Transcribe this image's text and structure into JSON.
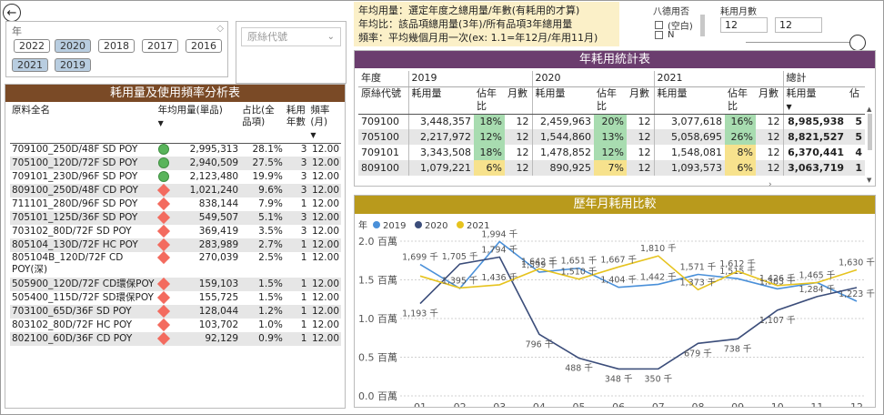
{
  "nav": {
    "back_icon": "←"
  },
  "year_slicer": {
    "label": "年",
    "years": [
      {
        "label": "2022",
        "selected": false
      },
      {
        "label": "2020",
        "selected": true
      },
      {
        "label": "2018",
        "selected": false
      },
      {
        "label": "2017",
        "selected": false
      },
      {
        "label": "2016",
        "selected": false
      },
      {
        "label": "2021",
        "selected": true
      },
      {
        "label": "2019",
        "selected": true
      }
    ]
  },
  "material_slicer": {
    "placeholder": "原絲代號"
  },
  "notes": {
    "line1": "年均用量：選定年度之總用量/年數(有耗用的才算)",
    "line2": "年均比：該品項總用量(3年)/所有品項3年總用量",
    "line3": "頻率：平均幾個月用一次(ex: 1.1=年12月/年用11月)"
  },
  "category_slicer": {
    "title": "八德用否",
    "options": [
      "(空白)",
      "N"
    ]
  },
  "months_slicer": {
    "title": "耗用月數",
    "min": "12",
    "max": "12"
  },
  "left_table": {
    "title": "耗用量及使用頻率分析表",
    "headers": {
      "name": "原料全名",
      "avg": "年均用量(單品)",
      "pct": "占比(全品項)",
      "years": "耗用年數",
      "freq": "頻率(月)"
    },
    "rows": [
      {
        "name": "709100_250D/48F SD POY",
        "status": "green",
        "avg": "2,995,313",
        "pct": "28.1%",
        "years": "3",
        "freq": "12.00"
      },
      {
        "name": "705100_120D/72F SD POY",
        "status": "green",
        "avg": "2,940,509",
        "pct": "27.5%",
        "years": "3",
        "freq": "12.00"
      },
      {
        "name": "709101_230D/96F SD POY",
        "status": "green",
        "avg": "2,123,480",
        "pct": "19.9%",
        "years": "3",
        "freq": "12.00"
      },
      {
        "name": "809100_250D/48F CD POY",
        "status": "red",
        "avg": "1,021,240",
        "pct": "9.6%",
        "years": "3",
        "freq": "12.00"
      },
      {
        "name": "711101_280D/96F SD POY",
        "status": "red",
        "avg": "838,144",
        "pct": "7.9%",
        "years": "1",
        "freq": "12.00"
      },
      {
        "name": "705101_125D/36F SD POY",
        "status": "red",
        "avg": "549,507",
        "pct": "5.1%",
        "years": "3",
        "freq": "12.00"
      },
      {
        "name": "703102_80D/72F SD POY",
        "status": "red",
        "avg": "369,419",
        "pct": "3.5%",
        "years": "3",
        "freq": "12.00"
      },
      {
        "name": "805104_130D/72F HC POY",
        "status": "red",
        "avg": "283,989",
        "pct": "2.7%",
        "years": "1",
        "freq": "12.00"
      },
      {
        "name": "805104B_120D/72F CD POY(深)",
        "status": "red",
        "avg": "270,039",
        "pct": "2.5%",
        "years": "1",
        "freq": "12.00"
      },
      {
        "name": "505900_120D/72F CD環保POY",
        "status": "red",
        "avg": "159,103",
        "pct": "1.5%",
        "years": "1",
        "freq": "12.00"
      },
      {
        "name": "505400_115D/72F SD環保POY",
        "status": "red",
        "avg": "155,725",
        "pct": "1.5%",
        "years": "1",
        "freq": "12.00"
      },
      {
        "name": "703100_65D/36F SD POY",
        "status": "red",
        "avg": "128,044",
        "pct": "1.2%",
        "years": "1",
        "freq": "12.00"
      },
      {
        "name": "803102_80D/72F HC POY",
        "status": "red",
        "avg": "103,702",
        "pct": "1.0%",
        "years": "1",
        "freq": "12.00"
      },
      {
        "name": "802100_60D/36F CD POY",
        "status": "red",
        "avg": "92,129",
        "pct": "0.9%",
        "years": "1",
        "freq": "12.00"
      }
    ]
  },
  "matrix": {
    "title": "年耗用統計表",
    "col_year": "年度",
    "col_code": "原絲代號",
    "years": [
      "2019",
      "2020",
      "2021"
    ],
    "sub_headers": {
      "usage": "耗用量",
      "share": "佔年比",
      "months": "月數"
    },
    "total_label": "總計",
    "total_usage": "耗用量",
    "total_share": "佔",
    "rows": [
      {
        "code": "709100",
        "cells": [
          {
            "usage": "3,448,357",
            "share": "18%",
            "c": "g",
            "months": "12"
          },
          {
            "usage": "2,459,963",
            "share": "20%",
            "c": "g",
            "months": "12"
          },
          {
            "usage": "3,077,618",
            "share": "16%",
            "c": "g",
            "months": "12"
          }
        ],
        "total": "8,985,938",
        "tshare": "5"
      },
      {
        "code": "705100",
        "cells": [
          {
            "usage": "2,217,972",
            "share": "12%",
            "c": "g",
            "months": "12"
          },
          {
            "usage": "1,544,860",
            "share": "13%",
            "c": "g",
            "months": "12"
          },
          {
            "usage": "5,058,695",
            "share": "26%",
            "c": "g",
            "months": "12"
          }
        ],
        "total": "8,821,527",
        "tshare": "5"
      },
      {
        "code": "709101",
        "cells": [
          {
            "usage": "3,343,508",
            "share": "18%",
            "c": "g",
            "months": "12"
          },
          {
            "usage": "1,478,852",
            "share": "12%",
            "c": "g",
            "months": "12"
          },
          {
            "usage": "1,548,081",
            "share": "8%",
            "c": "y",
            "months": "12"
          }
        ],
        "total": "6,370,441",
        "tshare": "4"
      },
      {
        "code": "809100",
        "cells": [
          {
            "usage": "1,079,221",
            "share": "6%",
            "c": "y",
            "months": "12"
          },
          {
            "usage": "890,925",
            "share": "7%",
            "c": "y",
            "months": "12"
          },
          {
            "usage": "1,093,573",
            "share": "6%",
            "c": "y",
            "months": "12"
          }
        ],
        "total": "3,063,719",
        "tshare": "1"
      }
    ]
  },
  "chart": {
    "title": "歷年月耗用比較",
    "legend_title": "年",
    "chart_data": {
      "type": "line",
      "title": "歷年月耗用比較",
      "x": [
        "01",
        "02",
        "03",
        "04",
        "05",
        "06",
        "07",
        "08",
        "09",
        "10",
        "11",
        "12"
      ],
      "y_ticks": [
        "0.0 百萬",
        "0.5 百萬",
        "1.0 百萬",
        "1.5 百萬",
        "2.0 百萬"
      ],
      "ylim": [
        0,
        2.0
      ],
      "y_unit": "百萬",
      "legend_placement": "top-left",
      "series": [
        {
          "name": "2019",
          "color": "#4a90d9",
          "values": [
            1.699,
            1.389,
            1.994,
            1.599,
            1.651,
            1.404,
            1.442,
            1.571,
            1.515,
            1.383,
            1.465,
            1.223
          ],
          "labels": [
            "1,699 千",
            "",
            "1,994 千",
            "1,599 千",
            "1,651 千",
            "1,404 千",
            "1,442 千",
            "1,571 千",
            "1,515 千",
            "1,383 千",
            "",
            "1,223 千"
          ]
        },
        {
          "name": "2020",
          "color": "#3b4d7a",
          "values": [
            1.193,
            1.705,
            1.794,
            0.796,
            0.488,
            0.348,
            0.35,
            0.679,
            0.738,
            1.107,
            1.284,
            1.4
          ],
          "labels": [
            "1,193 千",
            "1,705 千",
            "1,794 千",
            "796 千",
            "488 千",
            "348 千",
            "350 千",
            "679 千",
            "738 千",
            "1,107 千",
            "1,284 千",
            ""
          ]
        },
        {
          "name": "2021",
          "color": "#e6c31e",
          "values": [
            1.55,
            1.395,
            1.436,
            1.642,
            1.51,
            1.667,
            1.81,
            1.373,
            1.612,
            1.426,
            1.465,
            1.63
          ],
          "labels": [
            "",
            "1,395 千",
            "1,436 千",
            "1,642 千",
            "1,510 千",
            "1,667 千",
            "1,810 千",
            "1,373 千",
            "1,612 千",
            "1,426 千",
            "1,465 千",
            "1,630 千"
          ]
        }
      ]
    }
  }
}
